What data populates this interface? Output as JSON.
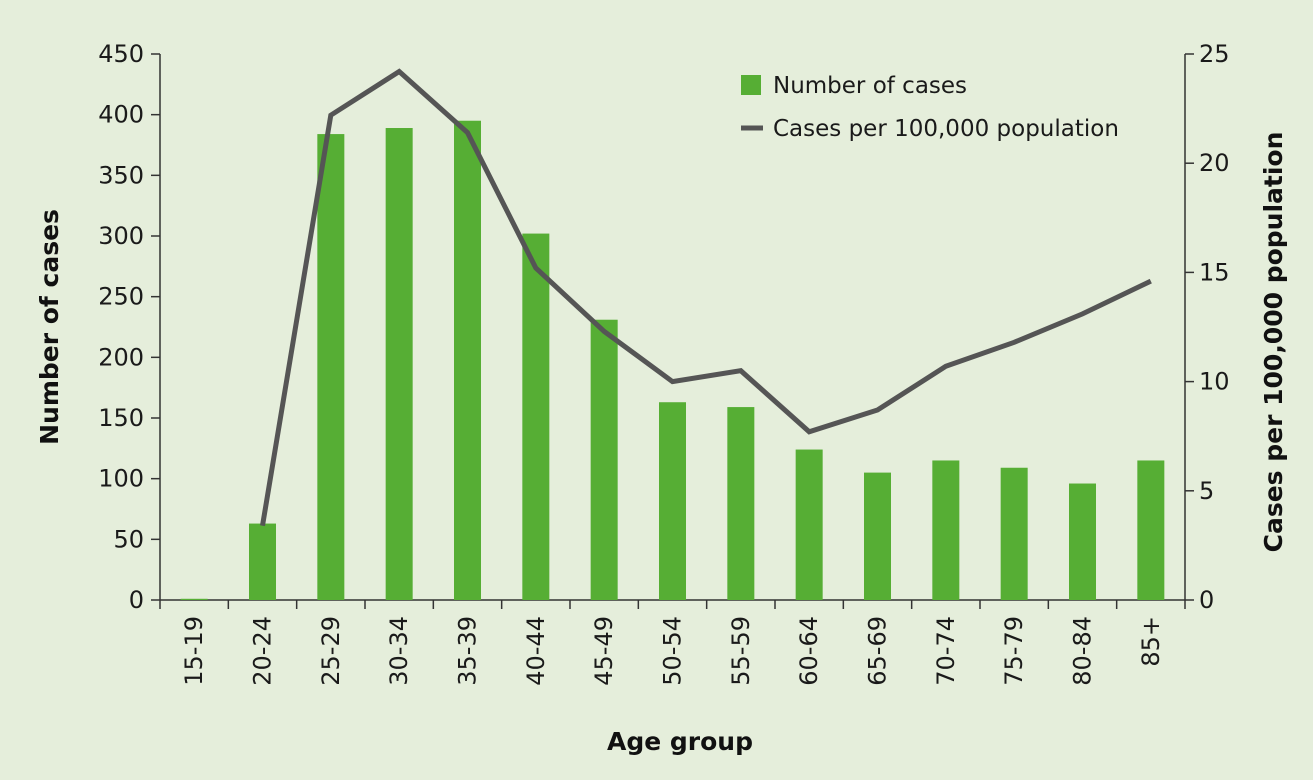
{
  "chart_data": {
    "type": "bar",
    "categories": [
      "15-19",
      "20-24",
      "25-29",
      "30-34",
      "35-39",
      "40-44",
      "45-49",
      "50-54",
      "55-59",
      "60-64",
      "65-69",
      "70-74",
      "75-79",
      "80-84",
      "85+"
    ],
    "series": [
      {
        "name": "Number of cases",
        "type": "bar",
        "axis": "left",
        "color": "#56ae34",
        "values": [
          1,
          63,
          384,
          389,
          395,
          302,
          231,
          163,
          159,
          124,
          105,
          115,
          109,
          96,
          115
        ]
      },
      {
        "name": "Cases per 100,000 population",
        "type": "line",
        "axis": "right",
        "color": "#555555",
        "values": [
          null,
          3.4,
          22.2,
          24.2,
          21.4,
          15.2,
          12.3,
          10.0,
          10.5,
          7.7,
          8.7,
          10.7,
          11.8,
          13.1,
          14.6
        ]
      }
    ],
    "xlabel": "Age group",
    "ylabel": "Number of cases",
    "y2label": "Cases per 100,000 population",
    "ylim": [
      0,
      450
    ],
    "y2lim": [
      0,
      25
    ],
    "yticks": [
      0,
      50,
      100,
      150,
      200,
      250,
      300,
      350,
      400,
      450
    ],
    "y2ticks": [
      0,
      5,
      10,
      15,
      20,
      25
    ],
    "grid": false,
    "legend_position": "top-right"
  }
}
